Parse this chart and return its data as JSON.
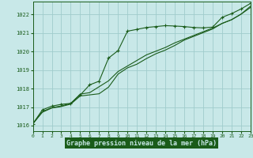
{
  "title": "Graphe pression niveau de la mer (hPa)",
  "bg_color": "#c8e8e8",
  "grid_color": "#a0cccc",
  "line_color": "#1a5c1a",
  "xlim": [
    0,
    23
  ],
  "ylim": [
    1015.7,
    1022.7
  ],
  "xticks": [
    0,
    1,
    2,
    3,
    4,
    5,
    6,
    7,
    8,
    9,
    10,
    11,
    12,
    13,
    14,
    15,
    16,
    17,
    18,
    19,
    20,
    21,
    22,
    23
  ],
  "yticks": [
    1016,
    1017,
    1018,
    1019,
    1020,
    1021,
    1022
  ],
  "series_marked_x": [
    0,
    1,
    2,
    3,
    4,
    5,
    6,
    7,
    8,
    9,
    10,
    11,
    12,
    13,
    14,
    15,
    16,
    17,
    18,
    19,
    20,
    21,
    22,
    23
  ],
  "series_marked_y": [
    1016.1,
    1016.85,
    1017.05,
    1017.15,
    1017.2,
    1017.65,
    1018.2,
    1018.4,
    1019.65,
    1020.05,
    1021.1,
    1021.2,
    1021.3,
    1021.35,
    1021.4,
    1021.38,
    1021.35,
    1021.3,
    1021.28,
    1021.32,
    1021.85,
    1022.05,
    1022.3,
    1022.6
  ],
  "series_line2_x": [
    0,
    1,
    2,
    3,
    4,
    5,
    6,
    7,
    8,
    9,
    10,
    11,
    12,
    13,
    14,
    15,
    16,
    17,
    18,
    19,
    20,
    21,
    22,
    23
  ],
  "series_line2_y": [
    1016.1,
    1016.72,
    1016.95,
    1017.03,
    1017.16,
    1017.6,
    1017.66,
    1017.72,
    1018.08,
    1018.78,
    1019.12,
    1019.32,
    1019.62,
    1019.88,
    1020.08,
    1020.33,
    1020.62,
    1020.82,
    1021.02,
    1021.22,
    1021.52,
    1021.72,
    1022.02,
    1022.38
  ],
  "series_line3_x": [
    0,
    1,
    2,
    3,
    4,
    5,
    6,
    7,
    8,
    9,
    10,
    11,
    12,
    13,
    14,
    15,
    16,
    17,
    18,
    19,
    20,
    21,
    22,
    23
  ],
  "series_line3_y": [
    1016.1,
    1016.76,
    1016.97,
    1017.06,
    1017.2,
    1017.7,
    1017.78,
    1018.1,
    1018.42,
    1018.92,
    1019.22,
    1019.52,
    1019.82,
    1020.02,
    1020.22,
    1020.47,
    1020.67,
    1020.87,
    1021.07,
    1021.27,
    1021.52,
    1021.72,
    1022.02,
    1022.45
  ],
  "xlabel_bg": "#1a5c1a",
  "xlabel_fg": "#c8e8e8"
}
